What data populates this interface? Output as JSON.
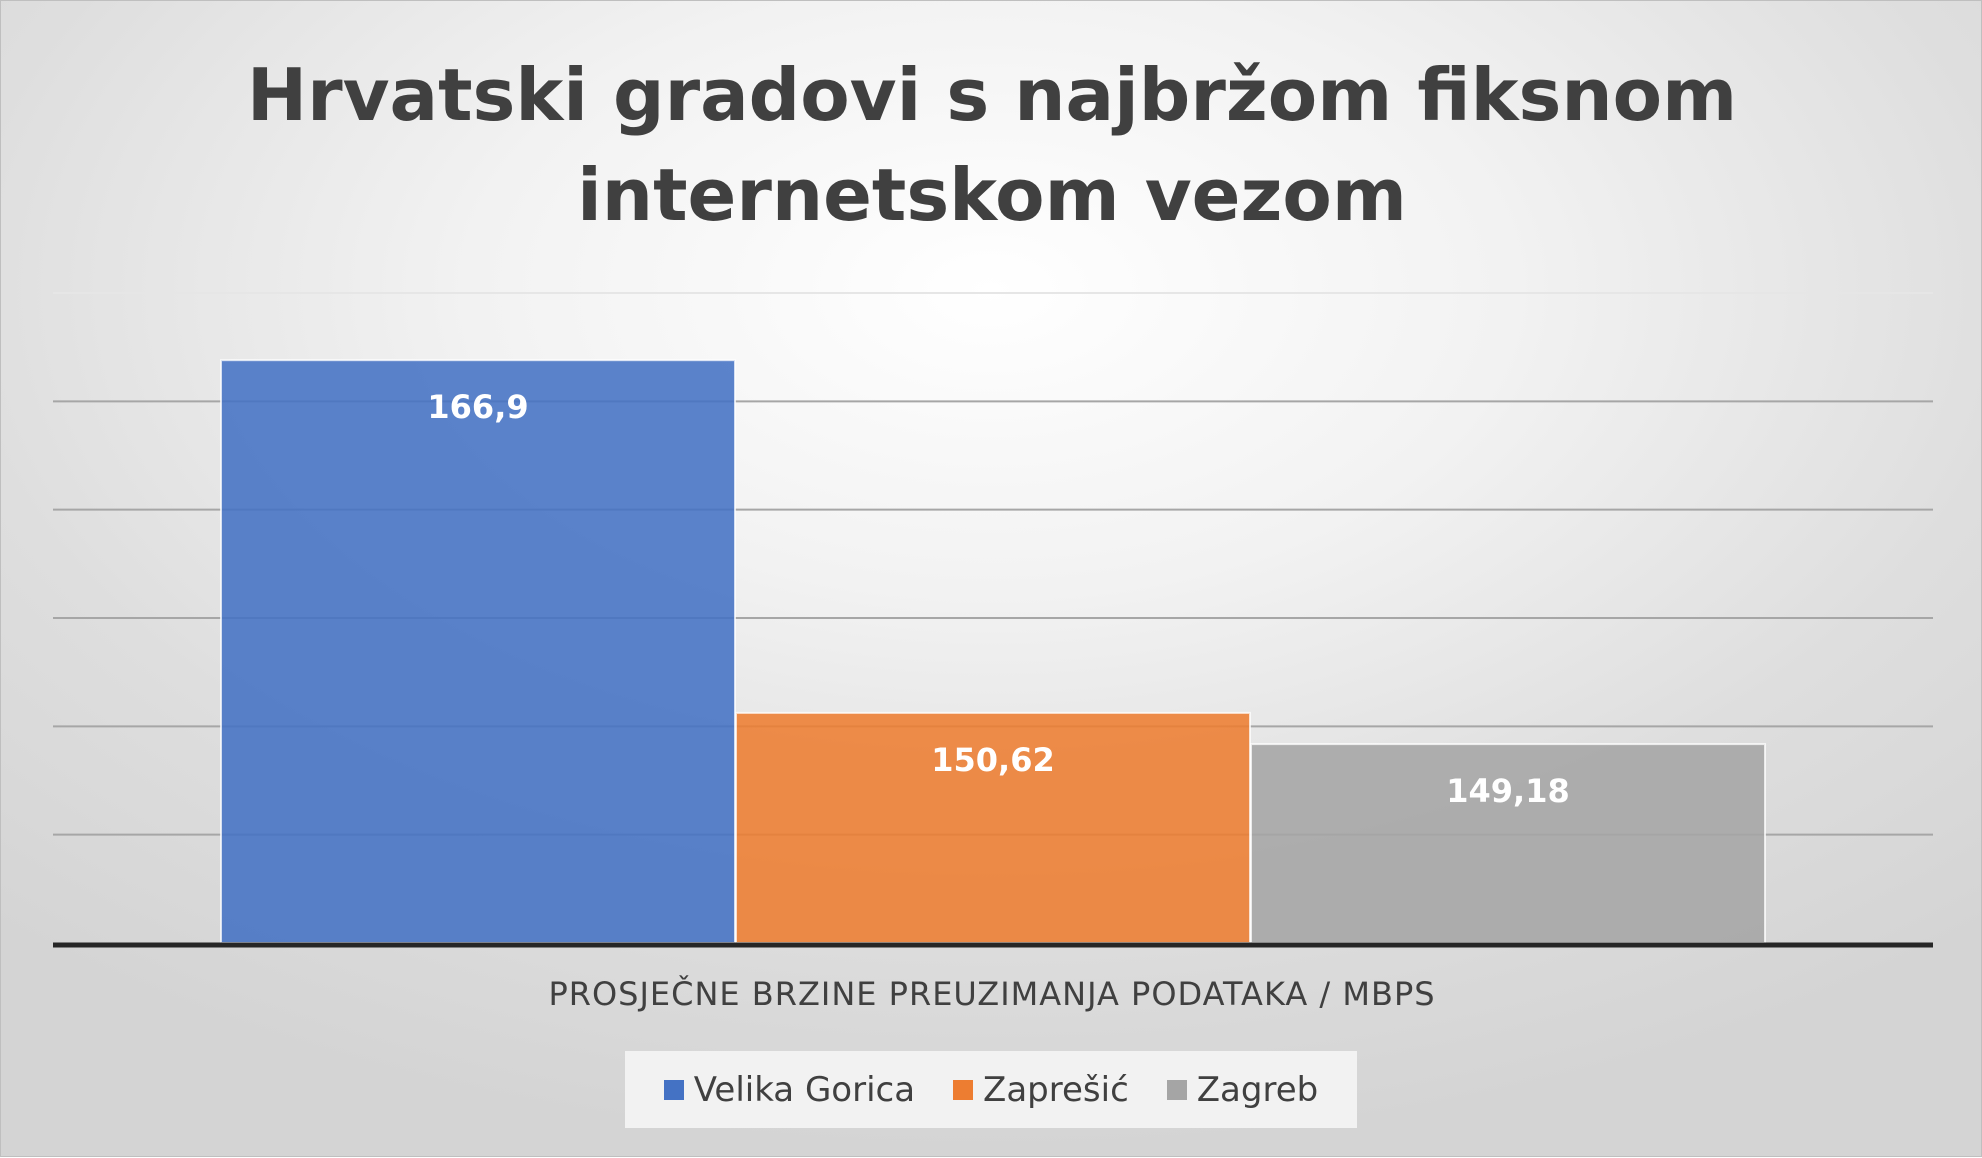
{
  "chart_data": {
    "type": "bar",
    "title": "Hrvatski gradovi s najbržom fiksnom\ninternetskom vezom",
    "xlabel": "PROSJEČNE BRZINE PREUZIMANJA PODATAKA / MBPS",
    "ylabel": "",
    "categories": [
      "PROSJEČNE BRZINE PREUZIMANJA PODATAKA / MBPS"
    ],
    "series": [
      {
        "name": "Velika Gorica",
        "values": [
          166.9
        ],
        "label": "166,9",
        "color": "#4472c4"
      },
      {
        "name": "Zaprešić",
        "values": [
          150.62
        ],
        "label": "150,62",
        "color": "#ed7d31"
      },
      {
        "name": "Zagreb",
        "values": [
          149.18
        ],
        "label": "149,18",
        "color": "#a5a5a5"
      }
    ],
    "ylim": [
      140,
      170
    ],
    "ytick_step": 5,
    "grid": true,
    "legend": "bottom"
  }
}
